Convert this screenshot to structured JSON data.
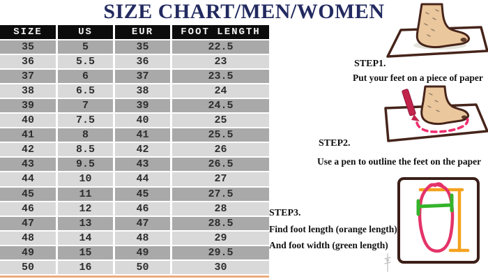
{
  "title": "SIZE CHART/MEN/WOMEN",
  "table": {
    "headers": [
      "SIZE",
      "US",
      "EUR",
      "FOOT LENGTH"
    ],
    "rows": [
      [
        "35",
        "5",
        "35",
        "22.5"
      ],
      [
        "36",
        "5.5",
        "36",
        "23"
      ],
      [
        "37",
        "6",
        "37",
        "23.5"
      ],
      [
        "38",
        "6.5",
        "38",
        "24"
      ],
      [
        "39",
        "7",
        "39",
        "24.5"
      ],
      [
        "40",
        "7.5",
        "40",
        "25"
      ],
      [
        "41",
        "8",
        "41",
        "25.5"
      ],
      [
        "42",
        "8.5",
        "42",
        "26"
      ],
      [
        "43",
        "9.5",
        "43",
        "26.5"
      ],
      [
        "44",
        "10",
        "44",
        "27"
      ],
      [
        "45",
        "11",
        "45",
        "27.5"
      ],
      [
        "46",
        "12",
        "46",
        "28"
      ],
      [
        "47",
        "13",
        "47",
        "28.5"
      ],
      [
        "48",
        "14",
        "48",
        "29"
      ],
      [
        "49",
        "15",
        "49",
        "29.5"
      ],
      [
        "50",
        "16",
        "50",
        "30"
      ]
    ]
  },
  "steps": [
    {
      "label": "STEP1.",
      "desc": "Put your feet on a piece of paper"
    },
    {
      "label": "STEP2.",
      "desc": "Use a pen to outline the feet on the paper"
    },
    {
      "label": "STEP3.",
      "desc": "Find foot length (orange length)",
      "desc2": "And foot width (green length)"
    }
  ],
  "illustrations": [
    "foot-on-paper-icon",
    "foot-outline-with-pen-icon",
    "foot-measurement-diagram-icon"
  ],
  "colors": {
    "title_navy": "#222a60",
    "header_bg": "#0c0c0c",
    "header_text": "#f2f2f2",
    "row_dark": "#a9a9a9",
    "row_light": "#d9d9d9",
    "table_bottom_border": "#ecaa7c",
    "foot_skin": "#ebc79d",
    "outline_brown": "#46241a",
    "pen_red": "#c2254c",
    "dashed_pink": "#ef2e6e",
    "length_orange": "#f5a11e",
    "width_green": "#35b32a"
  }
}
